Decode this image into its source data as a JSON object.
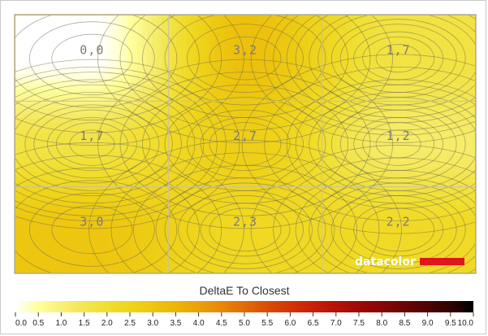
{
  "chart_data": {
    "type": "heatmap",
    "title": "DeltaE To Closest",
    "rows": 3,
    "cols": 3,
    "cells": [
      [
        "0,0",
        "3,2",
        "1,7"
      ],
      [
        "1,7",
        "2,7",
        "1,2"
      ],
      [
        "3,0",
        "2,3",
        "2,2"
      ]
    ],
    "values": [
      [
        0.0,
        3.2,
        1.7
      ],
      [
        1.7,
        2.7,
        1.2
      ],
      [
        3.0,
        2.3,
        2.2
      ]
    ],
    "scale": {
      "min": 0.0,
      "max": 10.0,
      "ticks": [
        "0.0",
        "0.5",
        "1.0",
        "1.5",
        "2.0",
        "2.5",
        "3.0",
        "3.5",
        "4.0",
        "4.5",
        "5.0",
        "5.5",
        "6.0",
        "6.5",
        "7.0",
        "7.5",
        "8.0",
        "8.5",
        "9.0",
        "9.5",
        "10.0"
      ],
      "colors": [
        "#ffffff",
        "#ffff9e",
        "#f8f079",
        "#f3e651",
        "#f1de2e",
        "#efd41b",
        "#edc60f",
        "#ebb607",
        "#e9a10a",
        "#e68809",
        "#e06b06",
        "#d94d05",
        "#d23406",
        "#c81f08",
        "#b51208",
        "#9e0a07",
        "#860606",
        "#6a0505",
        "#4e0404",
        "#300202",
        "#000000"
      ]
    },
    "grid": true,
    "contours": true
  },
  "brand": {
    "text": "datacolor",
    "accent": "#e0161c"
  }
}
